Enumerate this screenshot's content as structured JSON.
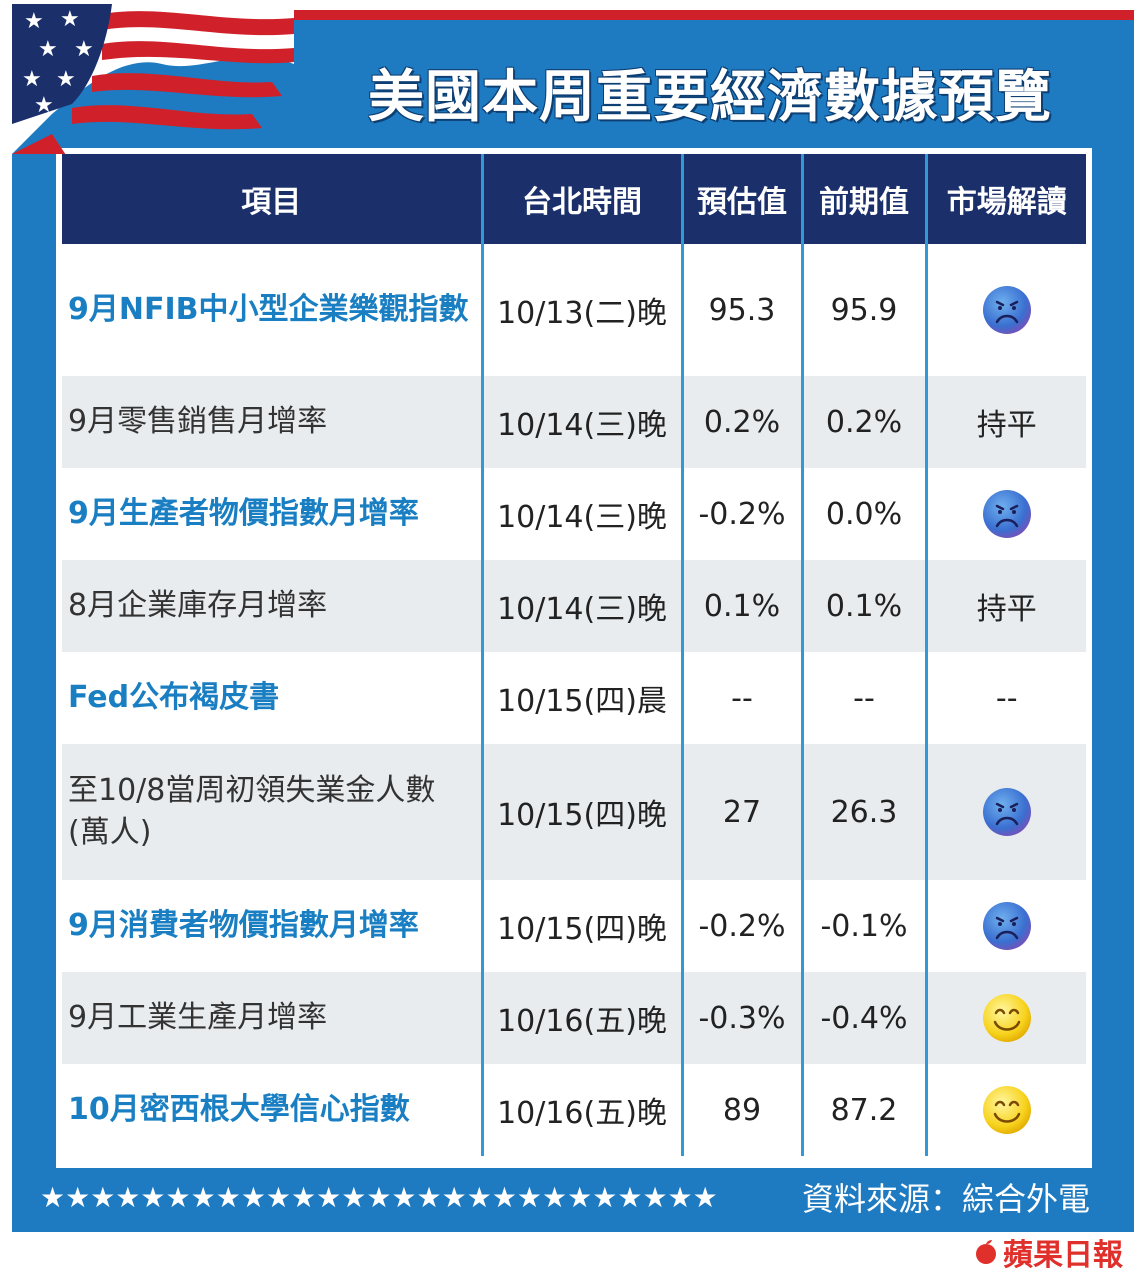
{
  "title": "美國本周重要經濟數據預覽",
  "columns": [
    "項目",
    "台北時間",
    "預估值",
    "前期值",
    "市場解讀"
  ],
  "rows": [
    {
      "item": "9月NFIB中小型企業樂觀指數",
      "time": "10/13(二)晚",
      "forecast": "95.3",
      "previous": "95.9",
      "reading": {
        "type": "icon",
        "icon": "sad-face-icon",
        "text": ""
      }
    },
    {
      "item": "9月零售銷售月增率",
      "time": "10/14(三)晚",
      "forecast": "0.2%",
      "previous": "0.2%",
      "reading": {
        "type": "text",
        "text": "持平"
      }
    },
    {
      "item": "9月生產者物價指數月增率",
      "time": "10/14(三)晚",
      "forecast": "-0.2%",
      "previous": "0.0%",
      "reading": {
        "type": "icon",
        "icon": "sad-face-icon",
        "text": ""
      }
    },
    {
      "item": "8月企業庫存月增率",
      "time": "10/14(三)晚",
      "forecast": "0.1%",
      "previous": "0.1%",
      "reading": {
        "type": "text",
        "text": "持平"
      }
    },
    {
      "item": "Fed公布褐皮書",
      "time": "10/15(四)晨",
      "forecast": "--",
      "previous": "--",
      "reading": {
        "type": "text",
        "text": "--"
      }
    },
    {
      "item": "至10/8當周初領失業金人數(萬人)",
      "time": "10/15(四)晚",
      "forecast": "27",
      "previous": "26.3",
      "reading": {
        "type": "icon",
        "icon": "sad-face-icon",
        "text": ""
      }
    },
    {
      "item": "9月消費者物價指數月增率",
      "time": "10/15(四)晚",
      "forecast": "-0.2%",
      "previous": "-0.1%",
      "reading": {
        "type": "icon",
        "icon": "sad-face-icon",
        "text": ""
      }
    },
    {
      "item": "9月工業生產月增率",
      "time": "10/16(五)晚",
      "forecast": "-0.3%",
      "previous": "-0.4%",
      "reading": {
        "type": "icon",
        "icon": "smiley-face-icon",
        "text": ""
      }
    },
    {
      "item": "10月密西根大學信心指數",
      "time": "10/16(五)晚",
      "forecast": "89",
      "previous": "87.2",
      "reading": {
        "type": "icon",
        "icon": "smiley-face-icon",
        "text": ""
      }
    }
  ],
  "stars": "★★★★★★★★★★★★★★★★★★★★★★★★★★★",
  "source": "資料來源：綜合外電",
  "logo": "蘋果日報",
  "colors": {
    "background": "#1e7bc1",
    "header": "#1b2f6b",
    "accent_red": "#d0202a",
    "link_blue": "#1a7fc2"
  }
}
